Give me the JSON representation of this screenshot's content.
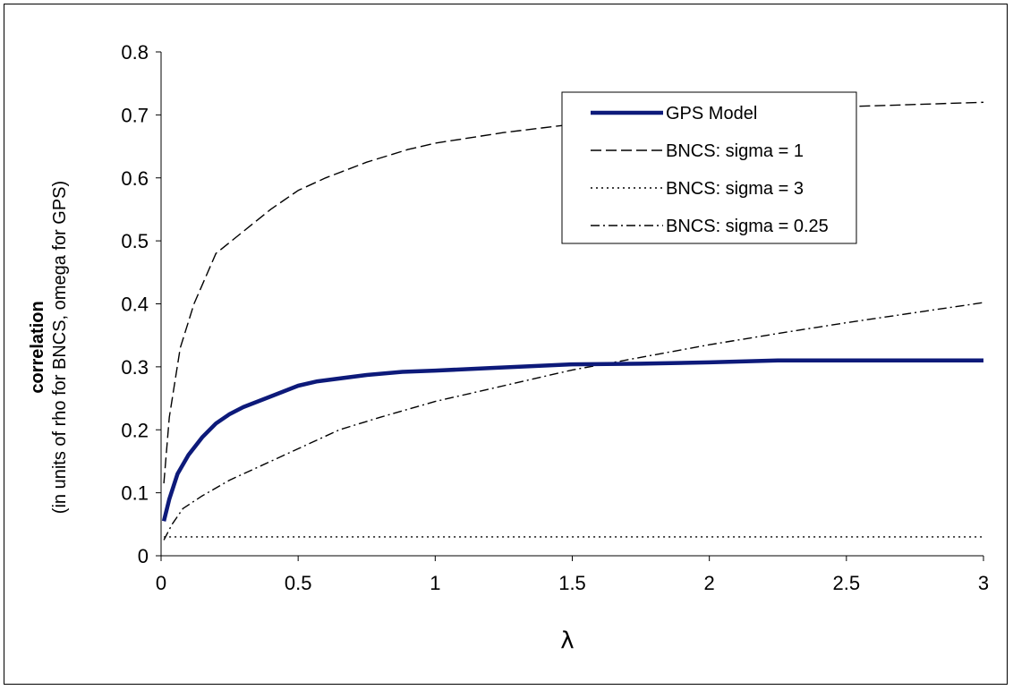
{
  "chart_data": {
    "type": "line",
    "title": "",
    "xlabel": "λ",
    "ylabel": "correlation",
    "ylabel_sub": "(in units of rho for BNCS, omega for GPS)",
    "xlim": [
      0,
      3
    ],
    "ylim": [
      0,
      0.8
    ],
    "xticks": [
      0,
      0.5,
      1,
      1.5,
      2,
      2.5,
      3
    ],
    "xtick_labels": [
      "0",
      "0.5",
      "1",
      "1.5",
      "2",
      "2.5",
      "3"
    ],
    "yticks": [
      0,
      0.1,
      0.2,
      0.3,
      0.4,
      0.5,
      0.6,
      0.7,
      0.8
    ],
    "ytick_labels": [
      "0",
      "0.1",
      "0.2",
      "0.3",
      "0.4",
      "0.5",
      "0.6",
      "0.7",
      "0.8"
    ],
    "grid": false,
    "legend_position": "top-right",
    "series": [
      {
        "name": "GPS Model",
        "color": "#0d1a7a",
        "style": "solid-thick",
        "x": [
          0.01,
          0.03,
          0.06,
          0.1,
          0.15,
          0.2,
          0.25,
          0.3,
          0.4,
          0.5,
          0.57,
          0.75,
          0.88,
          1.0,
          1.2,
          1.5,
          1.75,
          2.0,
          2.25,
          2.5,
          3.0
        ],
        "y": [
          0.055,
          0.09,
          0.13,
          0.16,
          0.188,
          0.21,
          0.225,
          0.236,
          0.253,
          0.27,
          0.277,
          0.287,
          0.292,
          0.294,
          0.298,
          0.304,
          0.305,
          0.307,
          0.31,
          0.31,
          0.31
        ]
      },
      {
        "name": "BNCS: sigma = 1",
        "color": "#000000",
        "style": "dashed",
        "x": [
          0.01,
          0.03,
          0.07,
          0.12,
          0.2,
          0.3,
          0.4,
          0.5,
          0.6,
          0.75,
          0.9,
          1.0,
          1.25,
          1.5,
          1.75,
          2.0,
          2.5,
          3.0
        ],
        "y": [
          0.115,
          0.22,
          0.33,
          0.4,
          0.48,
          0.515,
          0.55,
          0.58,
          0.6,
          0.625,
          0.645,
          0.655,
          0.672,
          0.685,
          0.695,
          0.703,
          0.713,
          0.72
        ]
      },
      {
        "name": "BNCS: sigma = 3",
        "color": "#000000",
        "style": "dotted",
        "x": [
          0.01,
          3.0
        ],
        "y": [
          0.03,
          0.03
        ]
      },
      {
        "name": "BNCS: sigma = 0.25",
        "color": "#000000",
        "style": "dashdot",
        "x": [
          0.01,
          0.04,
          0.08,
          0.15,
          0.25,
          0.35,
          0.5,
          0.65,
          0.8,
          1.0,
          1.25,
          1.5,
          1.75,
          2.0,
          2.25,
          2.5,
          3.0
        ],
        "y": [
          0.025,
          0.05,
          0.075,
          0.095,
          0.12,
          0.14,
          0.17,
          0.2,
          0.22,
          0.245,
          0.27,
          0.295,
          0.315,
          0.335,
          0.353,
          0.37,
          0.402
        ]
      }
    ]
  }
}
